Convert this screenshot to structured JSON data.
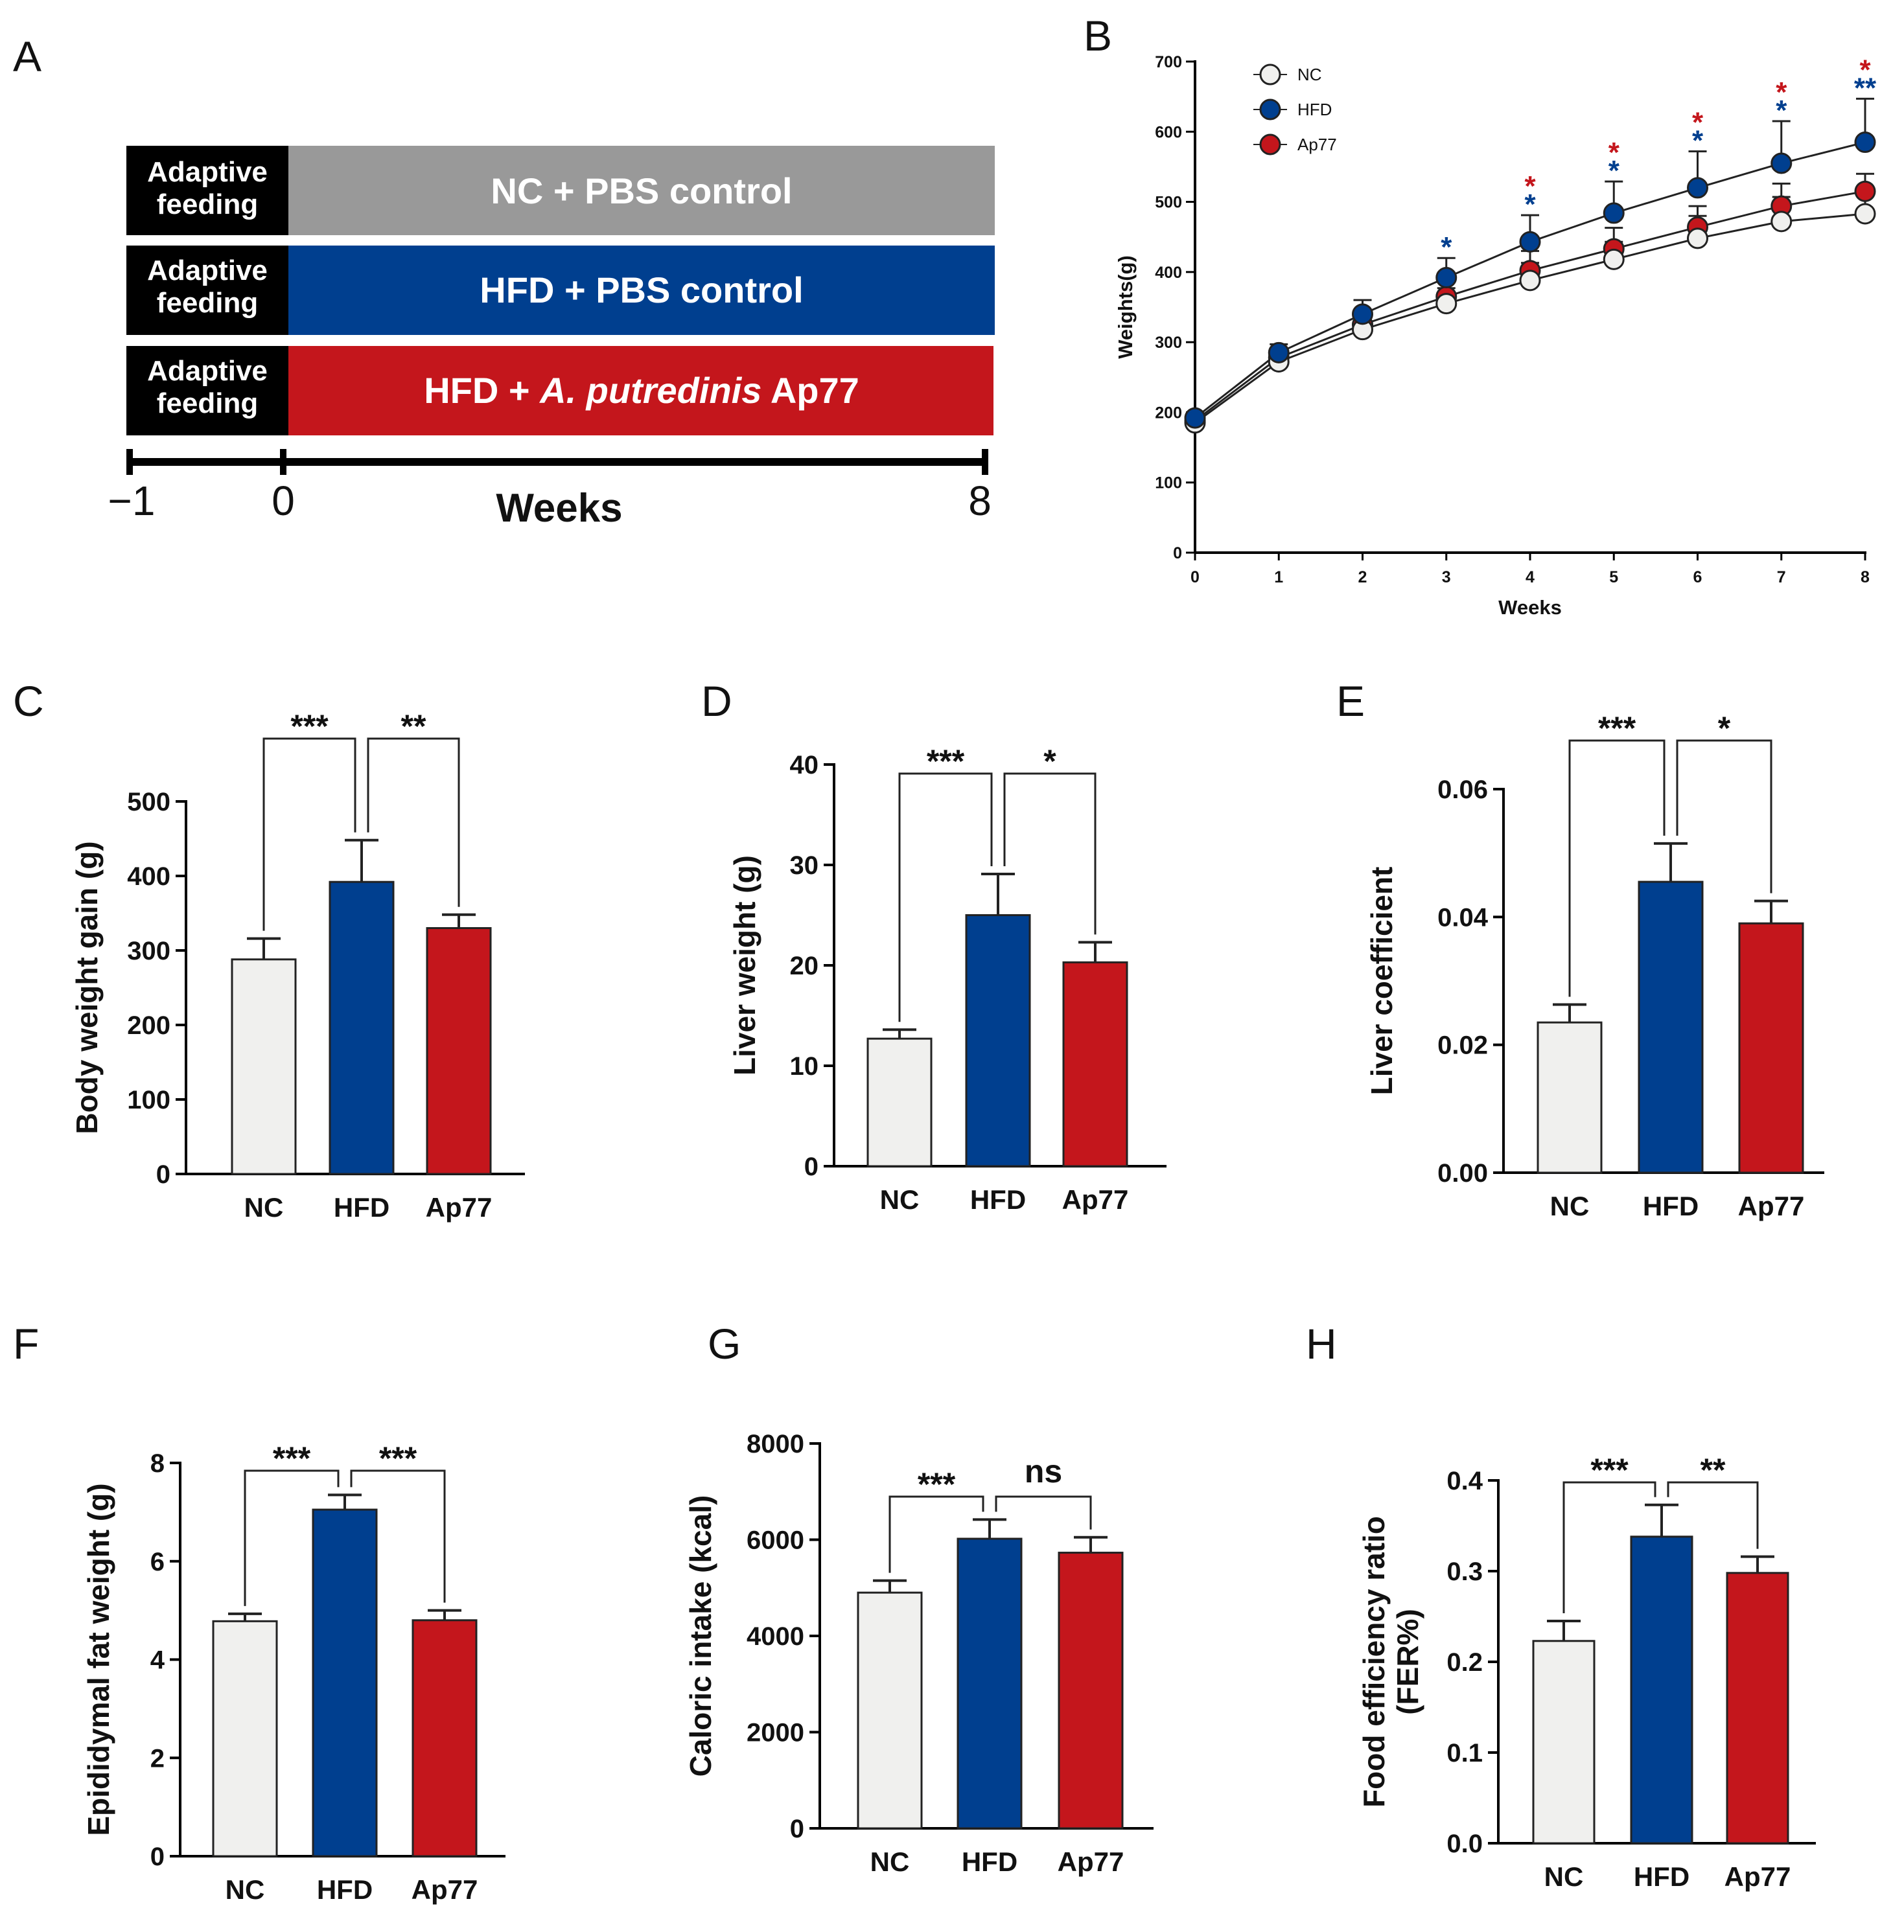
{
  "colors": {
    "nc": "#f0f0ee",
    "hfd": "#003f8f",
    "ap77": "#c4161c",
    "nc_scheme": "#999999",
    "black": "#000000"
  },
  "panelA": {
    "label": "A",
    "rows": [
      {
        "adaptive_line1": "Adaptive",
        "adaptive_line2": "feeding",
        "text_pre": "NC + PBS control",
        "text_italic": "",
        "text_post": "",
        "color_key": "nc_scheme"
      },
      {
        "adaptive_line1": "Adaptive",
        "adaptive_line2": "feeding",
        "text_pre": "HFD + PBS control",
        "text_italic": "",
        "text_post": "",
        "color_key": "hfd"
      },
      {
        "adaptive_line1": "Adaptive",
        "adaptive_line2": "feeding",
        "text_pre": "HFD + ",
        "text_italic": "A. putredinis",
        "text_post": " Ap77",
        "color_key": "ap77"
      }
    ],
    "timeline": {
      "ticks": [
        "−1",
        "0",
        "8"
      ],
      "label": "Weeks"
    }
  },
  "chart_data": [
    {
      "panel": "B",
      "type": "line",
      "xlabel": "Weeks",
      "ylabel": "Weights(g)",
      "x": [
        0,
        1,
        2,
        3,
        4,
        5,
        6,
        7,
        8
      ],
      "xlim": [
        0,
        8
      ],
      "ylim": [
        0,
        700
      ],
      "yticks": [
        0,
        100,
        200,
        300,
        400,
        500,
        600,
        700
      ],
      "series": [
        {
          "name": "NC",
          "color_key": "nc",
          "values": [
            185,
            272,
            318,
            355,
            388,
            418,
            448,
            472,
            483
          ],
          "errors": [
            5,
            8,
            15,
            22,
            25,
            25,
            32,
            35,
            32
          ]
        },
        {
          "name": "HFD",
          "color_key": "hfd",
          "values": [
            192,
            285,
            340,
            392,
            443,
            484,
            520,
            555,
            585
          ],
          "errors": [
            6,
            12,
            20,
            28,
            38,
            45,
            52,
            60,
            62
          ]
        },
        {
          "name": "Ap77",
          "color_key": "ap77",
          "values": [
            188,
            278,
            325,
            365,
            402,
            433,
            464,
            494,
            515
          ],
          "errors": [
            5,
            10,
            18,
            24,
            28,
            30,
            30,
            32,
            25
          ]
        }
      ],
      "significance": [
        {
          "x": 3,
          "red": "",
          "blue": "*"
        },
        {
          "x": 4,
          "red": "*",
          "blue": "*"
        },
        {
          "x": 5,
          "red": "*",
          "blue": "*"
        },
        {
          "x": 6,
          "red": "*",
          "blue": "*"
        },
        {
          "x": 7,
          "red": "*",
          "blue": "*"
        },
        {
          "x": 8,
          "red": "*",
          "blue": "**"
        }
      ],
      "legend_position": "top-left"
    },
    {
      "panel": "C",
      "type": "bar",
      "ylabel": "Body weight gain (g)",
      "categories": [
        "NC",
        "HFD",
        "Ap77"
      ],
      "values": [
        288,
        392,
        330
      ],
      "errors": [
        28,
        56,
        18
      ],
      "ylim": [
        0,
        500
      ],
      "yticks": [
        "0",
        "100",
        "200",
        "300",
        "400",
        "500"
      ],
      "significance": [
        {
          "from": 0,
          "to": 1,
          "label": "***"
        },
        {
          "from": 1,
          "to": 2,
          "label": "**"
        }
      ]
    },
    {
      "panel": "D",
      "type": "bar",
      "ylabel": "Liver weight (g)",
      "categories": [
        "NC",
        "HFD",
        "Ap77"
      ],
      "values": [
        12.7,
        25.0,
        20.3
      ],
      "errors": [
        0.9,
        4.1,
        2.0
      ],
      "ylim": [
        0,
        40
      ],
      "yticks": [
        "0",
        "10",
        "20",
        "30",
        "40"
      ],
      "significance": [
        {
          "from": 0,
          "to": 1,
          "label": "***"
        },
        {
          "from": 1,
          "to": 2,
          "label": "*"
        }
      ]
    },
    {
      "panel": "E",
      "type": "bar",
      "ylabel": "Liver coefficient",
      "categories": [
        "NC",
        "HFD",
        "Ap77"
      ],
      "values": [
        0.0235,
        0.0455,
        0.039
      ],
      "errors": [
        0.0028,
        0.006,
        0.0035
      ],
      "ylim": [
        0,
        0.06
      ],
      "yticks": [
        "0.00",
        "0.02",
        "0.04",
        "0.06"
      ],
      "significance": [
        {
          "from": 0,
          "to": 1,
          "label": "***"
        },
        {
          "from": 1,
          "to": 2,
          "label": "*"
        }
      ]
    },
    {
      "panel": "F",
      "type": "bar",
      "ylabel": "Epididymal fat weight (g)",
      "categories": [
        "NC",
        "HFD",
        "Ap77"
      ],
      "values": [
        4.78,
        7.05,
        4.8
      ],
      "errors": [
        0.15,
        0.3,
        0.2
      ],
      "ylim": [
        0,
        8
      ],
      "yticks": [
        "0",
        "2",
        "4",
        "6",
        "8"
      ],
      "significance": [
        {
          "from": 0,
          "to": 1,
          "label": "***"
        },
        {
          "from": 1,
          "to": 2,
          "label": "***"
        }
      ]
    },
    {
      "panel": "G",
      "type": "bar",
      "ylabel": "Caloric intake (kcal)",
      "categories": [
        "NC",
        "HFD",
        "Ap77"
      ],
      "values": [
        4900,
        6020,
        5730
      ],
      "errors": [
        250,
        400,
        320
      ],
      "ylim": [
        0,
        8000
      ],
      "yticks": [
        "0",
        "2000",
        "4000",
        "6000",
        "8000"
      ],
      "significance": [
        {
          "from": 0,
          "to": 1,
          "label": "***"
        },
        {
          "from": 1,
          "to": 2,
          "label": "ns"
        }
      ]
    },
    {
      "panel": "H",
      "type": "bar",
      "ylabel": "Food efficiency ratio",
      "ylabel2": "(FER%)",
      "categories": [
        "NC",
        "HFD",
        "Ap77"
      ],
      "values": [
        0.223,
        0.338,
        0.298
      ],
      "errors": [
        0.022,
        0.035,
        0.018
      ],
      "ylim": [
        0,
        0.4
      ],
      "yticks": [
        "0.0",
        "0.1",
        "0.2",
        "0.3",
        "0.4"
      ],
      "significance": [
        {
          "from": 0,
          "to": 1,
          "label": "***"
        },
        {
          "from": 1,
          "to": 2,
          "label": "**"
        }
      ]
    }
  ]
}
